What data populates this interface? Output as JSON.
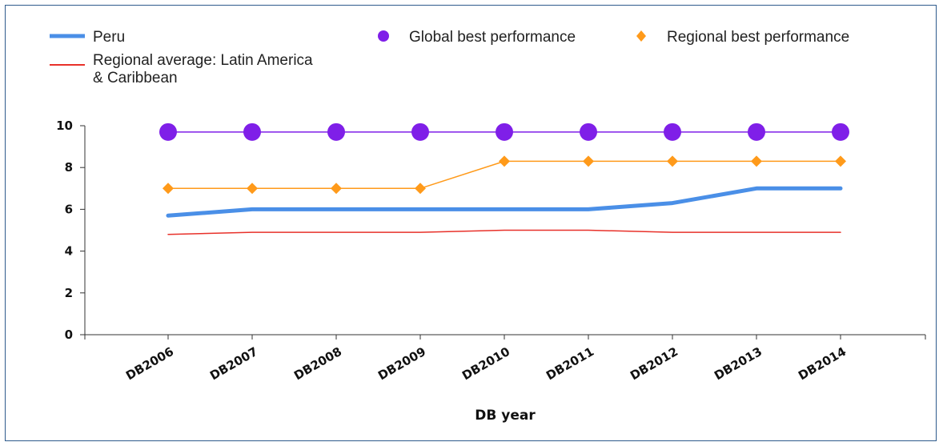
{
  "chart_data": {
    "type": "line",
    "xlabel": "DB year",
    "ylabel": "",
    "ylim": [
      0,
      10
    ],
    "yticks": [
      0,
      2,
      4,
      6,
      8,
      10
    ],
    "categories": [
      "DB2006",
      "DB2007",
      "DB2008",
      "DB2009",
      "DB2010",
      "DB2011",
      "DB2012",
      "DB2013",
      "DB2014"
    ],
    "series": [
      {
        "name": "Peru",
        "values": [
          5.7,
          6.0,
          6.0,
          6.0,
          6.0,
          6.0,
          6.3,
          7.0,
          7.0
        ],
        "color": "#4a8fe7"
      },
      {
        "name": "Regional average: Latin America & Caribbean",
        "values": [
          4.8,
          4.9,
          4.9,
          4.9,
          5.0,
          5.0,
          4.9,
          4.9,
          4.9
        ],
        "color": "#e8312a"
      },
      {
        "name": "Global best performance",
        "values": [
          9.7,
          9.7,
          9.7,
          9.7,
          9.7,
          9.7,
          9.7,
          9.7,
          9.7
        ],
        "color": "#7f1fe8"
      },
      {
        "name": "Regional best performance",
        "values": [
          7.0,
          7.0,
          7.0,
          7.0,
          8.3,
          8.3,
          8.3,
          8.3,
          8.3
        ],
        "color": "#ff9a1a"
      }
    ],
    "legend": {
      "position": "top",
      "entries": [
        {
          "label_lines": [
            "Peru"
          ]
        },
        {
          "label_lines": [
            "Regional average: Latin America",
            "& Caribbean"
          ]
        },
        {
          "label_lines": [
            "Global best performance"
          ]
        },
        {
          "label_lines": [
            "Regional best performance"
          ]
        }
      ]
    }
  }
}
